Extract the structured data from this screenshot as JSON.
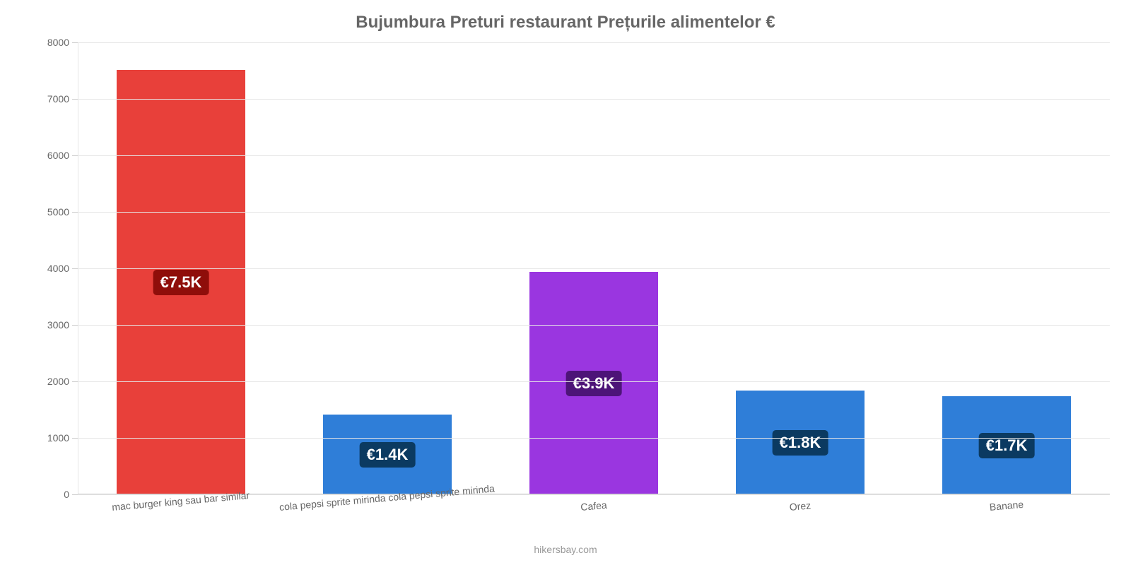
{
  "chart": {
    "type": "bar",
    "title": "Bujumbura Preturi restaurant Prețurile alimentelor €",
    "title_fontsize": 24,
    "title_color": "#666666",
    "background_color": "#ffffff",
    "grid_color": "#e6e6e6",
    "axis_line_color": "#cccccc",
    "label_color": "#666666",
    "y": {
      "min": 0,
      "max": 8000,
      "step": 1000,
      "ticks": [
        "0",
        "1000",
        "2000",
        "3000",
        "4000",
        "5000",
        "6000",
        "7000",
        "8000"
      ],
      "tick_fontsize": 14
    },
    "x": {
      "labels": [
        "mac burger king sau bar similar",
        "cola pepsi sprite mirinda cola pepsi sprite mirinda",
        "Cafea",
        "Orez",
        "Banane"
      ],
      "label_fontsize": 14,
      "rotation_deg": -5
    },
    "bars": [
      {
        "value": 7500,
        "display": "€7.5K",
        "color": "#e8403a",
        "badge_bg": "#8f0e0a"
      },
      {
        "value": 1400,
        "display": "€1.4K",
        "color": "#2f7ed8",
        "badge_bg": "#0b3a61"
      },
      {
        "value": 3920,
        "display": "€3.9K",
        "color": "#9a36e0",
        "badge_bg": "#4d1478"
      },
      {
        "value": 1820,
        "display": "€1.8K",
        "color": "#2f7ed8",
        "badge_bg": "#0b3a61"
      },
      {
        "value": 1730,
        "display": "€1.7K",
        "color": "#2f7ed8",
        "badge_bg": "#0b3a61"
      }
    ],
    "bar_width_ratio": 0.62,
    "value_label_fontsize": 22,
    "attribution": "hikersbay.com",
    "attribution_color": "#999999"
  }
}
